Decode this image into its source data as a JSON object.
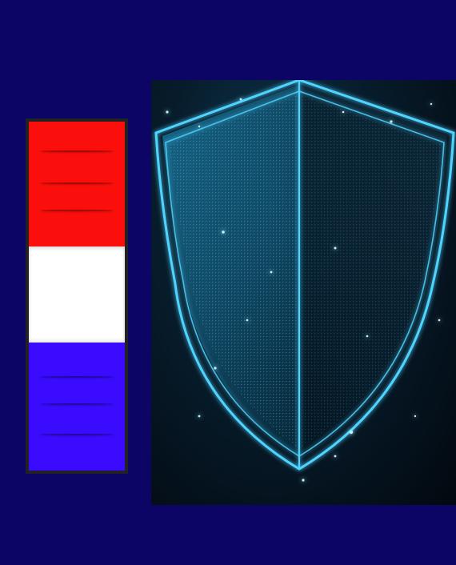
{
  "flag": {
    "colors": [
      "#fb0f0c",
      "#ffffff",
      "#3b0bff"
    ],
    "frame_color": "#222222"
  },
  "shield_image": {
    "icon": "digital-shield-icon",
    "glow_color": "#4fd4ff"
  },
  "background_color": "#0c0566"
}
